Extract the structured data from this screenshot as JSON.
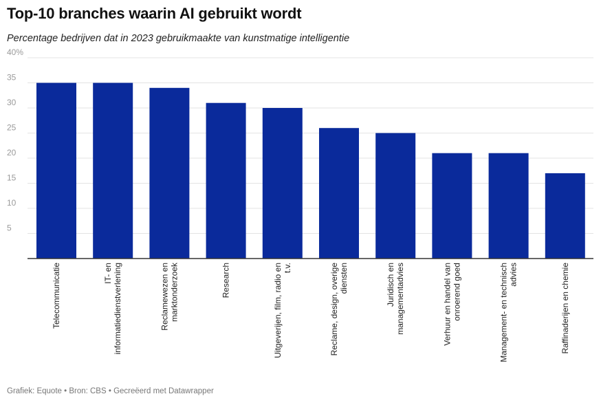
{
  "header": {
    "title": "Top-10 branches waarin AI gebruikt wordt",
    "subtitle": "Percentage bedrijven dat in 2023 gebruikmaakte van kunstmatige intelligentie"
  },
  "footer": {
    "credit": "Grafiek: Equote • Bron: CBS • Gecreëerd met Datawrapper"
  },
  "chart_data": {
    "type": "bar",
    "title": "Top-10 branches waarin AI gebruikt wordt",
    "subtitle": "Percentage bedrijven dat in 2023 gebruikmaakte van kunstmatige intelligentie",
    "xlabel": "",
    "ylabel": "",
    "categories": [
      [
        "Telecommunicatie"
      ],
      [
        "IT- en",
        "informatiedienstverlening"
      ],
      [
        "Reclamewezen en",
        "marktonderzoek"
      ],
      [
        "Research"
      ],
      [
        "Uitgeverijen, film, radio en",
        "t.v."
      ],
      [
        "Reclame, design, overige",
        "diensten"
      ],
      [
        "Juridisch en",
        "managementadvies"
      ],
      [
        "Verhuur en handel van",
        "onroerend goed"
      ],
      [
        "Management- en technisch",
        "advies"
      ],
      [
        "Raffinaderijen en chemie"
      ]
    ],
    "values": [
      35,
      35,
      34,
      31,
      30,
      26,
      25,
      21,
      21,
      17
    ],
    "ylim": [
      0,
      40
    ],
    "yticks": [
      {
        "value": 5,
        "label": "5"
      },
      {
        "value": 10,
        "label": "10"
      },
      {
        "value": 15,
        "label": "15"
      },
      {
        "value": 20,
        "label": "20"
      },
      {
        "value": 25,
        "label": "25"
      },
      {
        "value": 30,
        "label": "30"
      },
      {
        "value": 35,
        "label": "35"
      },
      {
        "value": 40,
        "label": "40%"
      }
    ],
    "grid": true,
    "bar_color": "#0a2a9b",
    "grid_color": "#e3e3e3",
    "axis_color": "#333333"
  }
}
